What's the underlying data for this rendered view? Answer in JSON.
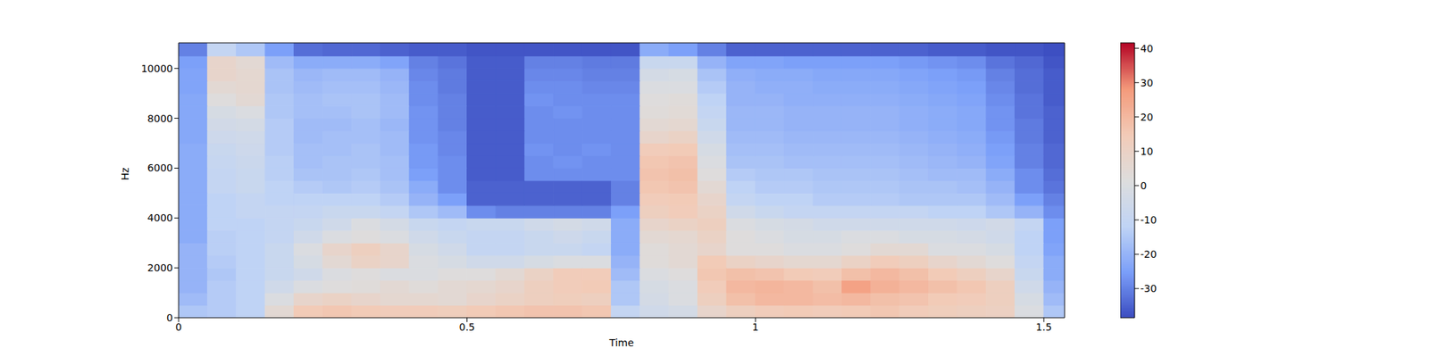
{
  "chart_data": {
    "type": "heatmap",
    "color": "coolwarm",
    "x_label": "Time",
    "y_label": "Hz",
    "xlim": [
      0,
      1.536
    ],
    "ylim": [
      0,
      11025
    ],
    "xticks": [
      0,
      0.5,
      1,
      1.5
    ],
    "yticks": [
      0,
      2000,
      4000,
      6000,
      8000,
      10000
    ],
    "x_edges": [
      0,
      0.05,
      0.1,
      0.15,
      0.2,
      0.25,
      0.3,
      0.35,
      0.4,
      0.45,
      0.5,
      0.55,
      0.6,
      0.65,
      0.7,
      0.75,
      0.8,
      0.85,
      0.9,
      0.95,
      1,
      1.05,
      1.1,
      1.15,
      1.2,
      1.25,
      1.3,
      1.35,
      1.4,
      1.45,
      1.5,
      1.55
    ],
    "y_edges": [
      0,
      500,
      1000,
      1500,
      2000,
      2500,
      3000,
      3500,
      4000,
      4500,
      5000,
      5500,
      6000,
      6500,
      7000,
      7500,
      8000,
      8500,
      9000,
      9500,
      10000,
      10500,
      11025
    ],
    "values": [
      [
        -15,
        -14,
        -12,
        5,
        15,
        16,
        15,
        14,
        14,
        13,
        15,
        16,
        17,
        17,
        16,
        -10,
        -5,
        -3,
        8,
        12,
        14,
        15,
        14,
        15,
        16,
        14,
        13,
        12,
        11,
        0,
        -15
      ],
      [
        -18,
        -14,
        -12,
        0,
        8,
        10,
        8,
        6,
        6,
        5,
        8,
        10,
        12,
        13,
        12,
        -15,
        -3,
        0,
        12,
        18,
        20,
        20,
        19,
        20,
        18,
        17,
        15,
        14,
        12,
        -2,
        -18
      ],
      [
        -20,
        -14,
        -12,
        -5,
        0,
        2,
        3,
        5,
        3,
        5,
        6,
        8,
        12,
        14,
        15,
        -15,
        -2,
        0,
        14,
        20,
        21,
        20,
        18,
        26,
        22,
        20,
        18,
        16,
        12,
        -5,
        -20
      ],
      [
        -20,
        -15,
        -12,
        -8,
        -5,
        0,
        2,
        0,
        0,
        2,
        2,
        5,
        10,
        14,
        14,
        -18,
        0,
        2,
        16,
        18,
        17,
        15,
        14,
        18,
        20,
        18,
        15,
        12,
        8,
        -8,
        -22
      ],
      [
        -20,
        -14,
        -12,
        -8,
        -2,
        5,
        10,
        8,
        0,
        -2,
        -5,
        -5,
        -2,
        0,
        0,
        -20,
        3,
        5,
        15,
        10,
        8,
        6,
        6,
        10,
        14,
        12,
        8,
        5,
        2,
        -10,
        -22
      ],
      [
        -20,
        -13,
        -12,
        -8,
        0,
        8,
        12,
        8,
        -2,
        -5,
        -10,
        -10,
        -8,
        -8,
        -10,
        -22,
        3,
        5,
        8,
        2,
        2,
        0,
        0,
        2,
        5,
        5,
        0,
        0,
        -2,
        -12,
        -24
      ],
      [
        -22,
        -13,
        -12,
        -10,
        -5,
        0,
        2,
        0,
        -5,
        -8,
        -10,
        -10,
        -8,
        -6,
        -8,
        -22,
        5,
        6,
        10,
        2,
        0,
        -2,
        -2,
        0,
        0,
        -2,
        -2,
        -3,
        -5,
        -12,
        -25
      ],
      [
        -22,
        -12,
        -12,
        -10,
        -8,
        -5,
        0,
        -3,
        -8,
        -10,
        -8,
        -8,
        -5,
        -3,
        -5,
        -22,
        8,
        10,
        12,
        0,
        -2,
        -3,
        -5,
        -5,
        -5,
        -5,
        -5,
        -6,
        -4,
        -10,
        -25
      ],
      [
        -22,
        -12,
        -10,
        -10,
        -10,
        -8,
        -8,
        -10,
        -15,
        -18,
        -28,
        -30,
        -30,
        -30,
        -30,
        -25,
        12,
        14,
        10,
        -5,
        -8,
        -10,
        -10,
        -10,
        -10,
        -10,
        -12,
        -12,
        -15,
        -20,
        -28
      ],
      [
        -22,
        -12,
        -10,
        -12,
        -12,
        -12,
        -12,
        -14,
        -20,
        -25,
        -35,
        -35,
        -35,
        -35,
        -35,
        -30,
        14,
        15,
        8,
        -10,
        -12,
        -12,
        -14,
        -14,
        -14,
        -15,
        -15,
        -15,
        -18,
        -25,
        -30
      ],
      [
        -22,
        -10,
        -8,
        -12,
        -14,
        -15,
        -14,
        -16,
        -22,
        -28,
        -35,
        -35,
        -35,
        -35,
        -35,
        -30,
        16,
        17,
        5,
        -12,
        -14,
        -14,
        -15,
        -15,
        -15,
        -16,
        -16,
        -17,
        -20,
        -28,
        -32
      ],
      [
        -22,
        -10,
        -8,
        -13,
        -16,
        -16,
        -15,
        -17,
        -25,
        -28,
        -36,
        -36,
        -28,
        -28,
        -28,
        -28,
        17,
        18,
        2,
        -14,
        -15,
        -15,
        -16,
        -16,
        -16,
        -17,
        -18,
        -18,
        -22,
        -28,
        -33
      ],
      [
        -22,
        -9,
        -7,
        -13,
        -17,
        -16,
        -16,
        -17,
        -26,
        -28,
        -36,
        -36,
        -28,
        -27,
        -28,
        -28,
        16,
        17,
        0,
        -16,
        -16,
        -17,
        -17,
        -17,
        -17,
        -18,
        -19,
        -20,
        -24,
        -30,
        -34
      ],
      [
        -22,
        -8,
        -6,
        -14,
        -17,
        -17,
        -16,
        -18,
        -26,
        -29,
        -36,
        -36,
        -27,
        -28,
        -27,
        -28,
        14,
        15,
        -2,
        -17,
        -17,
        -18,
        -18,
        -18,
        -18,
        -19,
        -20,
        -21,
        -25,
        -30,
        -34
      ],
      [
        -23,
        -6,
        -5,
        -14,
        -18,
        -17,
        -17,
        -18,
        -27,
        -29,
        -36,
        -36,
        -28,
        -28,
        -28,
        -28,
        8,
        10,
        -5,
        -18,
        -18,
        -19,
        -19,
        -19,
        -19,
        -20,
        -21,
        -22,
        -26,
        -31,
        -35
      ],
      [
        -23,
        -4,
        -3,
        -14,
        -18,
        -18,
        -17,
        -19,
        -27,
        -30,
        -36,
        -36,
        -28,
        -28,
        -28,
        -28,
        5,
        6,
        -8,
        -19,
        -19,
        -20,
        -20,
        -20,
        -20,
        -21,
        -22,
        -23,
        -27,
        -31,
        -35
      ],
      [
        -23,
        -2,
        0,
        -15,
        -17,
        -17,
        -16,
        -18,
        -27,
        -30,
        -36,
        -36,
        -28,
        -27,
        -28,
        -28,
        3,
        4,
        -10,
        -19,
        -19,
        -20,
        -20,
        -20,
        -20,
        -21,
        -22,
        -23,
        -27,
        -32,
        -35
      ],
      [
        -23,
        2,
        5,
        -15,
        -17,
        -16,
        -16,
        -18,
        -28,
        -30,
        -36,
        -36,
        -27,
        -28,
        -28,
        -28,
        2,
        3,
        -12,
        -20,
        -20,
        -21,
        -21,
        -21,
        -21,
        -22,
        -23,
        -24,
        -28,
        -32,
        -36
      ],
      [
        -24,
        5,
        6,
        -16,
        -18,
        -17,
        -17,
        -19,
        -28,
        -31,
        -36,
        -36,
        -28,
        -28,
        -29,
        -29,
        0,
        0,
        -14,
        -20,
        -21,
        -21,
        -22,
        -22,
        -22,
        -23,
        -24,
        -25,
        -29,
        -33,
        -36
      ],
      [
        -24,
        8,
        6,
        -16,
        -19,
        -18,
        -18,
        -20,
        -29,
        -31,
        -36,
        -36,
        -29,
        -29,
        -30,
        -30,
        -3,
        -2,
        -16,
        -21,
        -22,
        -22,
        -23,
        -23,
        -23,
        -24,
        -25,
        -26,
        -30,
        -33,
        -36
      ],
      [
        -25,
        8,
        5,
        -18,
        -22,
        -22,
        -22,
        -24,
        -30,
        -32,
        -36,
        -36,
        -30,
        -30,
        -31,
        -31,
        -8,
        -8,
        -20,
        -24,
        -24,
        -25,
        -25,
        -25,
        -25,
        -26,
        -27,
        -28,
        -32,
        -34,
        -37
      ],
      [
        -30,
        -10,
        -15,
        -25,
        -33,
        -34,
        -34,
        -35,
        -36,
        -36,
        -37,
        -37,
        -37,
        -37,
        -37,
        -37,
        -22,
        -25,
        -30,
        -35,
        -35,
        -35,
        -35,
        -35,
        -35,
        -35,
        -36,
        -36,
        -37,
        -37,
        -38
      ]
    ],
    "colorbar": {
      "range": [
        -38.5,
        41.6
      ],
      "ticks": [
        -30,
        -20,
        -10,
        0,
        10,
        20,
        30,
        40
      ]
    }
  }
}
